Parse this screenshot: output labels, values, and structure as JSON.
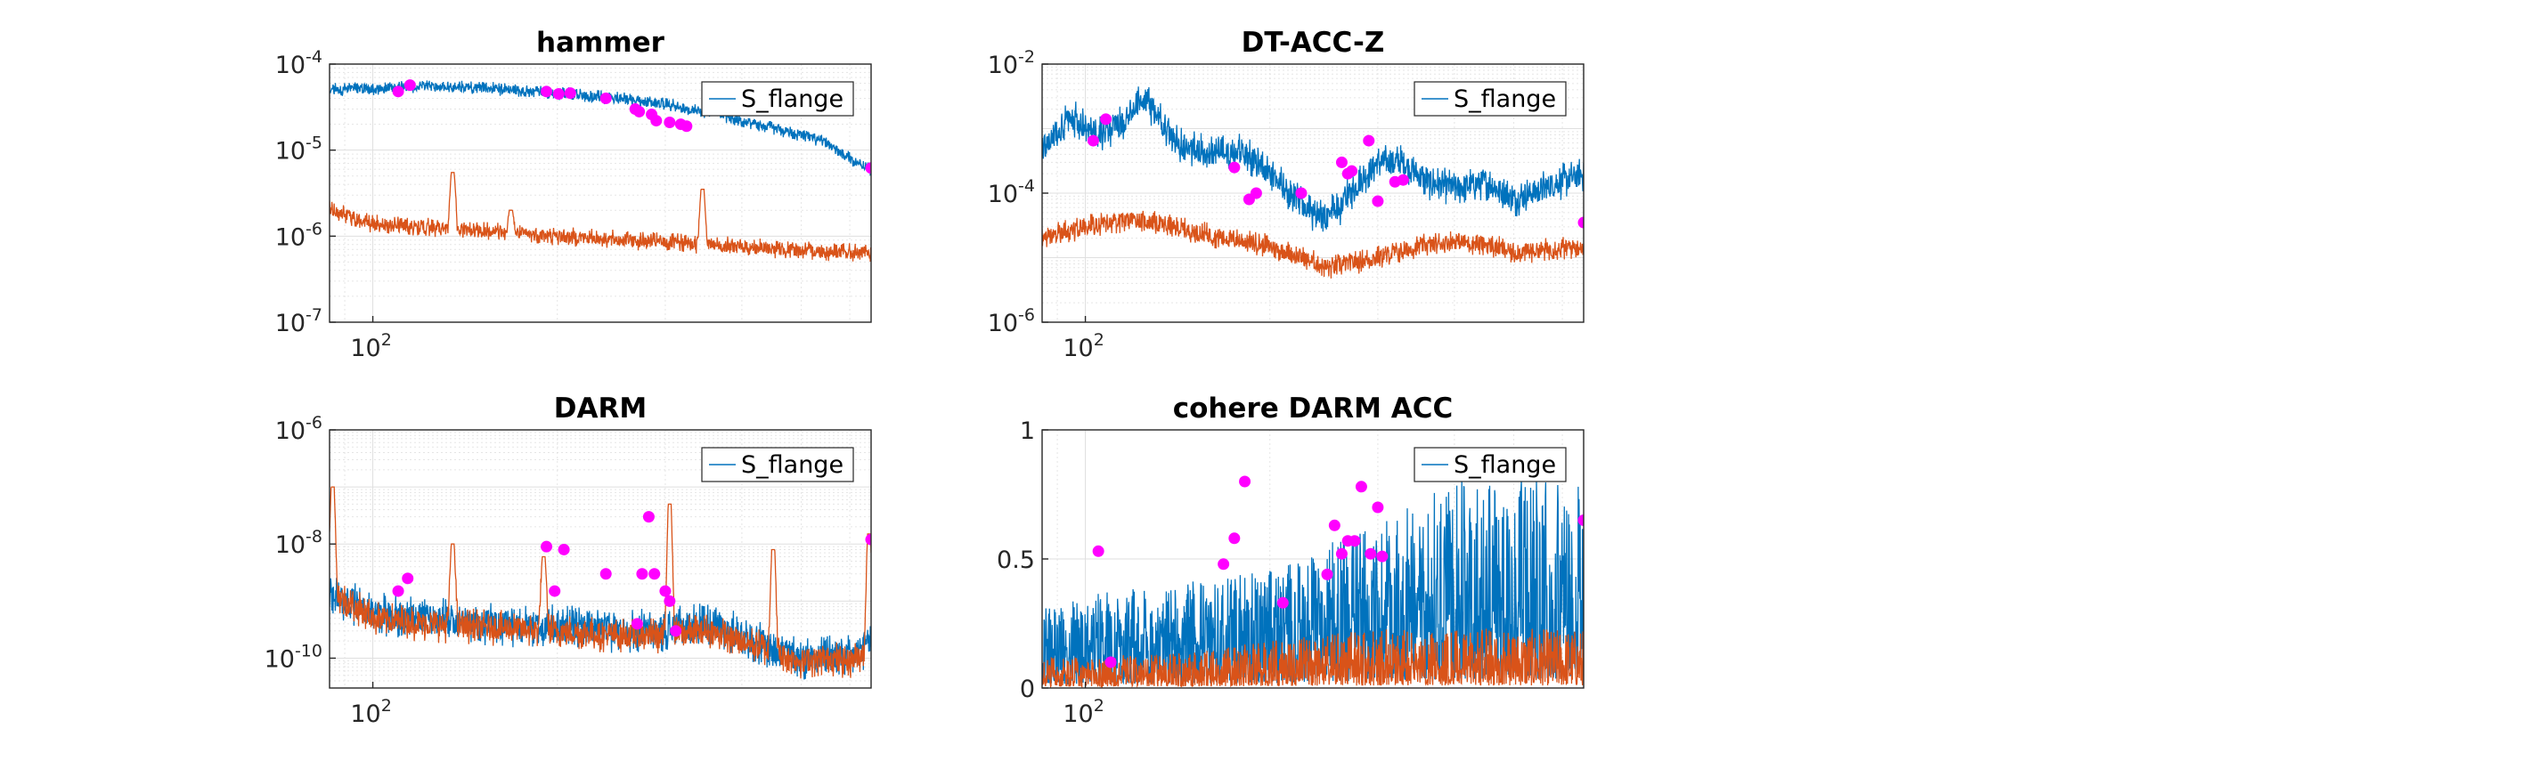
{
  "colors": {
    "series_blue": "#0072BD",
    "series_orange": "#D95319",
    "marker": "#FF00FF",
    "grid": "#DFDFDF",
    "axis": "#262626"
  },
  "chart_data": [
    {
      "id": "hammer",
      "type": "line",
      "title": "hammer",
      "xscale": "log",
      "yscale": "log",
      "xlim": [
        85,
        650
      ],
      "ylim": [
        1e-07,
        0.0001
      ],
      "grid": true,
      "legend": {
        "entries": [
          "S_flange"
        ],
        "placement": "top-right"
      },
      "ytick_labels": [
        {
          "value": 0.0001,
          "base": "10",
          "exp": "-4"
        },
        {
          "value": 1e-05,
          "base": "10",
          "exp": "-5"
        },
        {
          "value": 1e-06,
          "base": "10",
          "exp": "-6"
        },
        {
          "value": 1e-07,
          "base": "10",
          "exp": "-7"
        }
      ],
      "xtick_labels": [
        {
          "value": 100,
          "base": "10",
          "exp": "2"
        }
      ],
      "series": [
        {
          "name": "S_flange",
          "color": "#0072BD",
          "x": [
            85,
            100,
            120,
            150,
            200,
            250,
            300,
            350,
            400,
            450,
            500,
            550,
            600,
            650
          ],
          "y": [
            5e-05,
            5.2e-05,
            5.5e-05,
            5.3e-05,
            4.6e-05,
            4e-05,
            3.4e-05,
            2.8e-05,
            2.2e-05,
            1.8e-05,
            1.5e-05,
            1.2e-05,
            8e-06,
            6e-06
          ],
          "noise": 0.05
        },
        {
          "x": [
            85,
            100,
            150,
            200,
            300,
            400,
            500,
            650
          ],
          "y": [
            2e-06,
            1.4e-06,
            1.15e-06,
            1e-06,
            8.5e-07,
            7.5e-07,
            6.8e-07,
            6.3e-07
          ],
          "color": "#D95319",
          "noise": 0.07,
          "peaks": [
            {
              "x": 135,
              "y": 5.5e-06
            },
            {
              "x": 168,
              "y": 2e-06
            },
            {
              "x": 345,
              "y": 3.5e-06
            }
          ]
        }
      ],
      "markers": {
        "color": "#FF00FF",
        "x": [
          110,
          115,
          192,
          201,
          210,
          240,
          268,
          272,
          285,
          290,
          305,
          318,
          325,
          650
        ],
        "y": [
          4.8e-05,
          5.7e-05,
          4.8e-05,
          4.5e-05,
          4.6e-05,
          4e-05,
          3e-05,
          2.8e-05,
          2.6e-05,
          2.2e-05,
          2.1e-05,
          2e-05,
          1.9e-05,
          6.2e-06
        ]
      }
    },
    {
      "id": "dt-acc-z",
      "type": "line",
      "title": "DT-ACC-Z",
      "xscale": "log",
      "yscale": "log",
      "xlim": [
        85,
        650
      ],
      "ylim": [
        1e-06,
        0.01
      ],
      "grid": true,
      "legend": {
        "entries": [
          "S_flange"
        ],
        "placement": "top-right"
      },
      "ytick_labels": [
        {
          "value": 0.01,
          "base": "10",
          "exp": "-2"
        },
        {
          "value": 0.0001,
          "base": "10",
          "exp": "-4"
        },
        {
          "value": 1e-06,
          "base": "10",
          "exp": "-6"
        }
      ],
      "xtick_labels": [
        {
          "value": 100,
          "base": "10",
          "exp": "2"
        }
      ],
      "series": [
        {
          "name": "S_flange",
          "color": "#0072BD",
          "x": [
            85,
            95,
            105,
            115,
            125,
            140,
            160,
            180,
            200,
            220,
            240,
            260,
            280,
            300,
            330,
            360,
            400,
            450,
            500,
            560,
            650
          ],
          "y": [
            0.0005,
            0.0015,
            0.0008,
            0.0012,
            0.003,
            0.0006,
            0.0004,
            0.00045,
            0.0002,
            8e-05,
            4e-05,
            6e-05,
            0.00015,
            0.0003,
            0.0003,
            0.00015,
            0.00012,
            0.00015,
            8e-05,
            0.00012,
            0.0002
          ],
          "noise": 0.18
        },
        {
          "x": [
            85,
            100,
            120,
            150,
            200,
            250,
            300,
            350,
            400,
            450,
            500,
            550,
            650
          ],
          "y": [
            2e-05,
            3e-05,
            4e-05,
            2.5e-05,
            1.5e-05,
            7e-06,
            1e-05,
            1.5e-05,
            1.8e-05,
            1.6e-05,
            1.2e-05,
            1.3e-05,
            1.5e-05
          ],
          "color": "#D95319",
          "noise": 0.12
        },
        {
          "x": [],
          "y": []
        }
      ],
      "markers": {
        "color": "#FF00FF",
        "x": [
          103,
          108,
          175,
          185,
          190,
          225,
          262,
          268,
          272,
          290,
          300,
          320,
          330,
          650
        ],
        "y": [
          0.00065,
          0.0014,
          0.00025,
          8e-05,
          0.0001,
          0.0001,
          0.0003,
          0.0002,
          0.00022,
          0.00065,
          7.5e-05,
          0.00015,
          0.00016,
          3.5e-05
        ]
      }
    },
    {
      "id": "darm",
      "type": "line",
      "title": "DARM",
      "xscale": "log",
      "yscale": "log",
      "xlim": [
        85,
        650
      ],
      "ylim": [
        3e-11,
        1e-06
      ],
      "grid": true,
      "legend": {
        "entries": [
          "S_flange"
        ],
        "placement": "top-right"
      },
      "ytick_labels": [
        {
          "value": 1e-06,
          "base": "10",
          "exp": "-6"
        },
        {
          "value": 1e-08,
          "base": "10",
          "exp": "-8"
        },
        {
          "value": 1e-10,
          "base": "10",
          "exp": "-10"
        }
      ],
      "xtick_labels": [
        {
          "value": 100,
          "base": "10",
          "exp": "2"
        }
      ],
      "series": [
        {
          "name": "S_flange",
          "color": "#0072BD",
          "x": [
            85,
            100,
            120,
            150,
            200,
            250,
            300,
            350,
            400,
            450,
            500,
            550,
            600,
            650
          ],
          "y": [
            1.5e-09,
            6e-10,
            5e-10,
            4e-10,
            3.5e-10,
            3e-10,
            3e-10,
            4e-10,
            2.5e-10,
            1.5e-10,
            1e-10,
            1.2e-10,
            1e-10,
            2e-10
          ],
          "noise": 0.25
        },
        {
          "x": [
            85,
            100,
            120,
            150,
            200,
            250,
            300,
            350,
            400,
            450,
            500,
            550,
            600,
            650
          ],
          "y": [
            1.5e-09,
            5e-10,
            4e-10,
            3.5e-10,
            3e-10,
            2.5e-10,
            2.5e-10,
            3e-10,
            2e-10,
            1.3e-10,
            9e-11,
            1e-10,
            9e-11,
            1.5e-10
          ],
          "color": "#D95319",
          "noise": 0.2,
          "peaks": [
            {
              "x": 86,
              "y": 1e-07
            },
            {
              "x": 135,
              "y": 1e-08
            },
            {
              "x": 190,
              "y": 6e-09
            },
            {
              "x": 305,
              "y": 5e-08
            },
            {
              "x": 450,
              "y": 8e-09
            },
            {
              "x": 645,
              "y": 1.5e-08
            }
          ]
        }
      ],
      "markers": {
        "color": "#FF00FF",
        "x": [
          110,
          114,
          192,
          198,
          205,
          240,
          270,
          275,
          282,
          288,
          300,
          305,
          312,
          650
        ],
        "y": [
          1.5e-09,
          2.5e-09,
          9e-09,
          1.5e-09,
          8e-09,
          3e-09,
          4e-10,
          3e-09,
          3e-08,
          3e-09,
          1.5e-09,
          1e-09,
          3e-10,
          1.2e-08
        ]
      }
    },
    {
      "id": "cohere-darm-acc",
      "type": "line",
      "title": "cohere DARM ACC",
      "xscale": "log",
      "yscale": "linear",
      "xlim": [
        85,
        650
      ],
      "ylim": [
        0,
        1
      ],
      "grid": true,
      "legend": {
        "entries": [
          "S_flange"
        ],
        "placement": "top-right"
      },
      "ytick_labels": [
        {
          "value": 1,
          "base": "1",
          "exp": ""
        },
        {
          "value": 0.5,
          "base": "0.5",
          "exp": ""
        },
        {
          "value": 0,
          "base": "0",
          "exp": ""
        }
      ],
      "xtick_labels": [
        {
          "value": 100,
          "base": "10",
          "exp": "2"
        }
      ],
      "series": [
        {
          "name": "S_flange",
          "color": "#0072BD",
          "x": [
            85,
            150,
            200,
            300,
            400,
            500,
            650
          ],
          "y": [
            0.15,
            0.18,
            0.2,
            0.28,
            0.35,
            0.35,
            0.35
          ],
          "noise": 0.9,
          "mode": "coherence"
        },
        {
          "x": [
            85,
            150,
            200,
            300,
            400,
            500,
            650
          ],
          "y": [
            0.05,
            0.06,
            0.08,
            0.1,
            0.1,
            0.1,
            0.1
          ],
          "color": "#D95319",
          "noise": 0.8,
          "mode": "coherence"
        }
      ],
      "markers": {
        "color": "#FF00FF",
        "x": [
          105,
          110,
          168,
          175,
          182,
          210,
          248,
          255,
          262,
          268,
          275,
          282,
          292,
          300,
          305,
          650
        ],
        "y": [
          0.53,
          0.1,
          0.48,
          0.58,
          0.8,
          0.33,
          0.44,
          0.63,
          0.52,
          0.57,
          0.57,
          0.78,
          0.52,
          0.7,
          0.51,
          0.65
        ]
      }
    }
  ]
}
